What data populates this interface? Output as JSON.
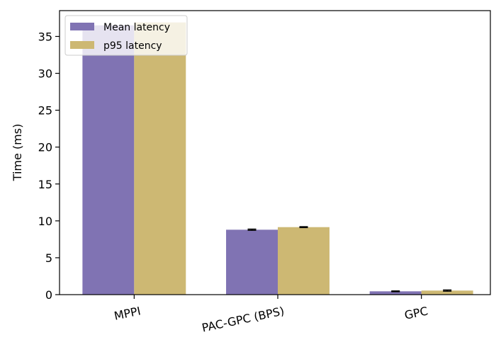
{
  "chart_data": {
    "type": "bar",
    "ylabel": "Time (ms)",
    "xlabel": "",
    "ylim": [
      0,
      38.5
    ],
    "yticks": [
      0,
      5,
      10,
      15,
      20,
      25,
      30,
      35
    ],
    "categories": [
      "MPPI",
      "PAC-GPC (BPS)",
      "GPC"
    ],
    "series": [
      {
        "name": "Mean latency",
        "values": [
          36.5,
          8.8,
          0.45
        ],
        "errors": [
          0,
          0.08,
          0.05
        ],
        "color": "#8073b3"
      },
      {
        "name": "p95 latency",
        "values": [
          36.9,
          9.15,
          0.55
        ],
        "errors": [
          0,
          0.06,
          0.08
        ],
        "color": "#cdb873"
      }
    ],
    "legend": "top-left",
    "grid": false
  }
}
